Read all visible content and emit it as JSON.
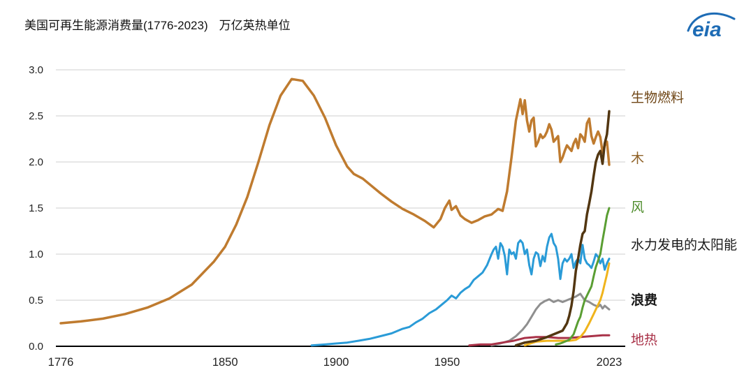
{
  "title": {
    "text": "美国可再生能源消费量(1776-2023)",
    "units": "万亿英热单位"
  },
  "logo": {
    "text": "eia",
    "color": "#1e6cb5"
  },
  "chart_data": {
    "type": "line",
    "title": "美国可再生能源消费量(1776-2023)",
    "units_label": "万亿英热单位",
    "xlabel": "",
    "ylabel": "",
    "xlim": [
      1776,
      2023
    ],
    "ylim": [
      0,
      3.0
    ],
    "grid": "horizontal",
    "legend_position": "right",
    "yticks": [
      "0.0",
      "0.5",
      "1.0",
      "1.5",
      "2.0",
      "2.5",
      "3.0"
    ],
    "xticks": [
      "1776",
      "1850",
      "1900",
      "1950",
      "2023"
    ],
    "series": [
      {
        "id": "wood",
        "label": "木",
        "color": "#bf7b2f",
        "width": 3.5,
        "points": [
          [
            1776,
            0.25
          ],
          [
            1785,
            0.27
          ],
          [
            1795,
            0.3
          ],
          [
            1805,
            0.35
          ],
          [
            1815,
            0.42
          ],
          [
            1825,
            0.52
          ],
          [
            1835,
            0.67
          ],
          [
            1845,
            0.92
          ],
          [
            1850,
            1.08
          ],
          [
            1855,
            1.32
          ],
          [
            1860,
            1.62
          ],
          [
            1865,
            2.0
          ],
          [
            1870,
            2.4
          ],
          [
            1875,
            2.72
          ],
          [
            1880,
            2.9
          ],
          [
            1885,
            2.88
          ],
          [
            1890,
            2.72
          ],
          [
            1895,
            2.48
          ],
          [
            1900,
            2.18
          ],
          [
            1905,
            1.95
          ],
          [
            1908,
            1.87
          ],
          [
            1912,
            1.82
          ],
          [
            1916,
            1.74
          ],
          [
            1920,
            1.66
          ],
          [
            1925,
            1.57
          ],
          [
            1930,
            1.49
          ],
          [
            1935,
            1.43
          ],
          [
            1940,
            1.36
          ],
          [
            1944,
            1.29
          ],
          [
            1947,
            1.38
          ],
          [
            1949,
            1.5
          ],
          [
            1951,
            1.58
          ],
          [
            1952,
            1.48
          ],
          [
            1954,
            1.52
          ],
          [
            1956,
            1.42
          ],
          [
            1958,
            1.38
          ],
          [
            1961,
            1.34
          ],
          [
            1964,
            1.37
          ],
          [
            1967,
            1.41
          ],
          [
            1970,
            1.43
          ],
          [
            1973,
            1.49
          ],
          [
            1975,
            1.47
          ],
          [
            1977,
            1.68
          ],
          [
            1979,
            2.05
          ],
          [
            1981,
            2.45
          ],
          [
            1983,
            2.68
          ],
          [
            1984,
            2.52
          ],
          [
            1985,
            2.67
          ],
          [
            1986,
            2.45
          ],
          [
            1987,
            2.33
          ],
          [
            1988,
            2.45
          ],
          [
            1989,
            2.48
          ],
          [
            1990,
            2.17
          ],
          [
            1991,
            2.22
          ],
          [
            1992,
            2.3
          ],
          [
            1993,
            2.26
          ],
          [
            1994,
            2.28
          ],
          [
            1995,
            2.33
          ],
          [
            1996,
            2.41
          ],
          [
            1997,
            2.35
          ],
          [
            1998,
            2.22
          ],
          [
            1999,
            2.25
          ],
          [
            2000,
            2.28
          ],
          [
            2001,
            2.0
          ],
          [
            2002,
            2.05
          ],
          [
            2003,
            2.12
          ],
          [
            2004,
            2.18
          ],
          [
            2005,
            2.15
          ],
          [
            2006,
            2.12
          ],
          [
            2007,
            2.2
          ],
          [
            2008,
            2.25
          ],
          [
            2009,
            2.15
          ],
          [
            2010,
            2.3
          ],
          [
            2011,
            2.27
          ],
          [
            2012,
            2.22
          ],
          [
            2013,
            2.42
          ],
          [
            2014,
            2.47
          ],
          [
            2015,
            2.28
          ],
          [
            2016,
            2.2
          ],
          [
            2017,
            2.27
          ],
          [
            2018,
            2.33
          ],
          [
            2019,
            2.27
          ],
          [
            2020,
            2.1
          ],
          [
            2021,
            2.18
          ],
          [
            2022,
            2.22
          ],
          [
            2023,
            1.97
          ]
        ]
      },
      {
        "id": "hydro",
        "label": "水力发电",
        "color": "#2a9bd7",
        "width": 3,
        "points": [
          [
            1889,
            0.01
          ],
          [
            1895,
            0.02
          ],
          [
            1900,
            0.03
          ],
          [
            1905,
            0.04
          ],
          [
            1910,
            0.06
          ],
          [
            1915,
            0.08
          ],
          [
            1920,
            0.11
          ],
          [
            1925,
            0.14
          ],
          [
            1930,
            0.19
          ],
          [
            1933,
            0.21
          ],
          [
            1936,
            0.26
          ],
          [
            1939,
            0.3
          ],
          [
            1942,
            0.36
          ],
          [
            1945,
            0.4
          ],
          [
            1948,
            0.46
          ],
          [
            1950,
            0.5
          ],
          [
            1952,
            0.55
          ],
          [
            1954,
            0.52
          ],
          [
            1956,
            0.58
          ],
          [
            1958,
            0.62
          ],
          [
            1960,
            0.65
          ],
          [
            1962,
            0.72
          ],
          [
            1964,
            0.76
          ],
          [
            1966,
            0.8
          ],
          [
            1968,
            0.88
          ],
          [
            1970,
            1.0
          ],
          [
            1971,
            1.05
          ],
          [
            1972,
            1.08
          ],
          [
            1973,
            0.95
          ],
          [
            1974,
            1.12
          ],
          [
            1975,
            1.08
          ],
          [
            1976,
            0.98
          ],
          [
            1977,
            0.78
          ],
          [
            1978,
            1.05
          ],
          [
            1979,
            1.0
          ],
          [
            1980,
            1.02
          ],
          [
            1981,
            0.95
          ],
          [
            1982,
            1.12
          ],
          [
            1983,
            1.15
          ],
          [
            1984,
            1.12
          ],
          [
            1985,
            1.0
          ],
          [
            1986,
            1.05
          ],
          [
            1987,
            0.88
          ],
          [
            1988,
            0.78
          ],
          [
            1989,
            0.95
          ],
          [
            1990,
            1.02
          ],
          [
            1991,
            1.0
          ],
          [
            1992,
            0.87
          ],
          [
            1993,
            0.98
          ],
          [
            1994,
            0.92
          ],
          [
            1995,
            1.08
          ],
          [
            1996,
            1.18
          ],
          [
            1997,
            1.22
          ],
          [
            1998,
            1.12
          ],
          [
            1999,
            1.08
          ],
          [
            2000,
            0.95
          ],
          [
            2001,
            0.73
          ],
          [
            2002,
            0.9
          ],
          [
            2003,
            0.95
          ],
          [
            2004,
            0.92
          ],
          [
            2005,
            0.95
          ],
          [
            2006,
            1.0
          ],
          [
            2007,
            0.85
          ],
          [
            2008,
            0.92
          ],
          [
            2009,
            0.95
          ],
          [
            2010,
            0.9
          ],
          [
            2011,
            1.1
          ],
          [
            2012,
            0.95
          ],
          [
            2013,
            0.9
          ],
          [
            2014,
            0.88
          ],
          [
            2015,
            0.85
          ],
          [
            2016,
            0.92
          ],
          [
            2017,
            1.0
          ],
          [
            2018,
            0.97
          ],
          [
            2019,
            0.9
          ],
          [
            2020,
            0.95
          ],
          [
            2021,
            0.83
          ],
          [
            2022,
            0.9
          ],
          [
            2023,
            0.95
          ]
        ]
      },
      {
        "id": "waste",
        "label": "浪费",
        "color": "#8f8f8f",
        "width": 3,
        "points": [
          [
            1970,
            0.01
          ],
          [
            1974,
            0.03
          ],
          [
            1978,
            0.06
          ],
          [
            1981,
            0.11
          ],
          [
            1984,
            0.18
          ],
          [
            1986,
            0.24
          ],
          [
            1988,
            0.32
          ],
          [
            1990,
            0.4
          ],
          [
            1992,
            0.46
          ],
          [
            1994,
            0.49
          ],
          [
            1996,
            0.51
          ],
          [
            1998,
            0.48
          ],
          [
            2000,
            0.5
          ],
          [
            2002,
            0.48
          ],
          [
            2004,
            0.5
          ],
          [
            2006,
            0.52
          ],
          [
            2008,
            0.54
          ],
          [
            2010,
            0.57
          ],
          [
            2012,
            0.5
          ],
          [
            2014,
            0.48
          ],
          [
            2016,
            0.45
          ],
          [
            2018,
            0.43
          ],
          [
            2019,
            0.45
          ],
          [
            2020,
            0.41
          ],
          [
            2021,
            0.44
          ],
          [
            2022,
            0.42
          ],
          [
            2023,
            0.4
          ]
        ]
      },
      {
        "id": "geothermal",
        "label": "地热",
        "color": "#a93248",
        "width": 3,
        "points": [
          [
            1960,
            0.01
          ],
          [
            1965,
            0.02
          ],
          [
            1970,
            0.02
          ],
          [
            1975,
            0.04
          ],
          [
            1980,
            0.06
          ],
          [
            1985,
            0.09
          ],
          [
            1990,
            0.1
          ],
          [
            1995,
            0.1
          ],
          [
            2000,
            0.09
          ],
          [
            2005,
            0.09
          ],
          [
            2010,
            0.1
          ],
          [
            2015,
            0.11
          ],
          [
            2020,
            0.12
          ],
          [
            2023,
            0.12
          ]
        ]
      },
      {
        "id": "solar",
        "label": "太阳能",
        "color": "#f0b41c",
        "width": 3,
        "points": [
          [
            1985,
            0.01
          ],
          [
            1990,
            0.05
          ],
          [
            1995,
            0.06
          ],
          [
            2000,
            0.06
          ],
          [
            2005,
            0.06
          ],
          [
            2008,
            0.07
          ],
          [
            2010,
            0.1
          ],
          [
            2012,
            0.16
          ],
          [
            2014,
            0.25
          ],
          [
            2016,
            0.35
          ],
          [
            2017,
            0.4
          ],
          [
            2018,
            0.45
          ],
          [
            2019,
            0.5
          ],
          [
            2020,
            0.58
          ],
          [
            2021,
            0.68
          ],
          [
            2022,
            0.78
          ],
          [
            2023,
            0.9
          ]
        ]
      },
      {
        "id": "wind",
        "label": "风",
        "color": "#5a9e33",
        "width": 3,
        "points": [
          [
            1999,
            0.02
          ],
          [
            2001,
            0.03
          ],
          [
            2003,
            0.05
          ],
          [
            2005,
            0.07
          ],
          [
            2007,
            0.13
          ],
          [
            2008,
            0.2
          ],
          [
            2009,
            0.27
          ],
          [
            2010,
            0.32
          ],
          [
            2011,
            0.42
          ],
          [
            2012,
            0.5
          ],
          [
            2013,
            0.55
          ],
          [
            2014,
            0.6
          ],
          [
            2015,
            0.65
          ],
          [
            2016,
            0.76
          ],
          [
            2017,
            0.86
          ],
          [
            2018,
            0.93
          ],
          [
            2019,
            1.0
          ],
          [
            2020,
            1.15
          ],
          [
            2021,
            1.28
          ],
          [
            2022,
            1.42
          ],
          [
            2023,
            1.5
          ]
        ]
      },
      {
        "id": "biofuels",
        "label": "生物燃料",
        "color": "#523611",
        "width": 3.5,
        "points": [
          [
            1981,
            0.01
          ],
          [
            1985,
            0.04
          ],
          [
            1990,
            0.06
          ],
          [
            1995,
            0.1
          ],
          [
            2000,
            0.15
          ],
          [
            2002,
            0.17
          ],
          [
            2004,
            0.25
          ],
          [
            2005,
            0.33
          ],
          [
            2006,
            0.44
          ],
          [
            2007,
            0.6
          ],
          [
            2008,
            0.82
          ],
          [
            2009,
            0.95
          ],
          [
            2010,
            1.1
          ],
          [
            2011,
            1.22
          ],
          [
            2012,
            1.25
          ],
          [
            2013,
            1.43
          ],
          [
            2014,
            1.55
          ],
          [
            2015,
            1.68
          ],
          [
            2016,
            1.85
          ],
          [
            2017,
            2.0
          ],
          [
            2018,
            2.08
          ],
          [
            2019,
            2.12
          ],
          [
            2020,
            1.98
          ],
          [
            2021,
            2.2
          ],
          [
            2022,
            2.3
          ],
          [
            2023,
            2.55
          ]
        ]
      }
    ],
    "legend": [
      {
        "id": "biofuels",
        "label": "生物燃料",
        "color": "#6f4616",
        "bold": false
      },
      {
        "id": "wood",
        "label": "木",
        "color": "#8f6228",
        "bold": false
      },
      {
        "id": "wind",
        "label": "风",
        "color": "#4e8c2b",
        "bold": false
      },
      {
        "id": "hydro-solar",
        "label": "水力发电的太阳能",
        "color": "#1a1a1a",
        "bold": false
      },
      {
        "id": "waste",
        "label": "浪费",
        "color": "#1a1a1a",
        "bold": true
      },
      {
        "id": "geothermal",
        "label": "地热",
        "color": "#a93248",
        "bold": false
      }
    ]
  }
}
